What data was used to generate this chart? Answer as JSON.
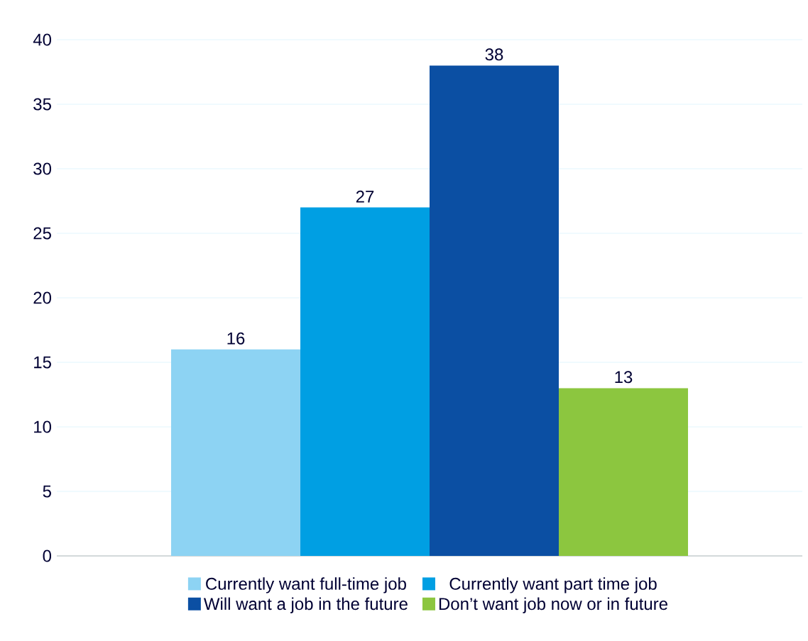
{
  "chart_data": {
    "type": "bar",
    "categories": [
      null
    ],
    "series": [
      {
        "name": "Currently want full-time job",
        "color": "#8dd3f3",
        "values": [
          16
        ]
      },
      {
        "name": "Currently want part time job",
        "color": "#009fe3",
        "values": [
          27
        ]
      },
      {
        "name": "Will want a job in the future",
        "color": "#0b4fa3",
        "values": [
          38
        ]
      },
      {
        "name": "Don’t want job now or in future",
        "color": "#8cc63f",
        "values": [
          13
        ]
      }
    ],
    "ylim": [
      0,
      40
    ],
    "yticks": [
      0,
      5,
      10,
      15,
      20,
      25,
      30,
      35,
      40
    ],
    "grid": "y",
    "legend": "bottom",
    "data_labels": true
  }
}
